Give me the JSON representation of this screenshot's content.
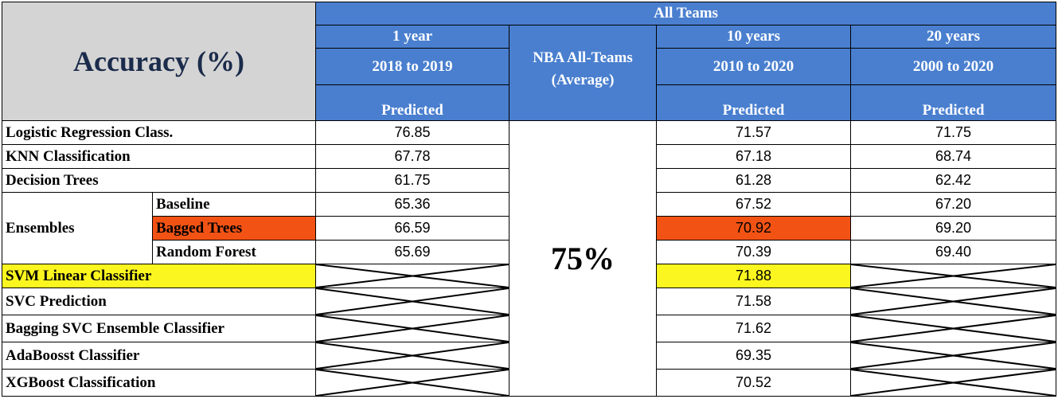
{
  "header": {
    "title": "Accuracy (%)",
    "all_teams": "All Teams",
    "col_1year": {
      "period": "1 year",
      "range": "2018 to 2019",
      "sub": "Predicted"
    },
    "col_nba": {
      "line1": "NBA All-Teams",
      "line2": "(Average)"
    },
    "col_10years": {
      "period": "10 years",
      "range": "2010 to 2020",
      "sub": "Predicted"
    },
    "col_20years": {
      "period": "20 years",
      "range": "2000 to 2020",
      "sub": "Predicted"
    }
  },
  "average": "75%",
  "ensembles_label": "Ensembles",
  "rows": [
    {
      "label": "Logistic Regression Class.",
      "y1": "76.85",
      "y10": "71.57",
      "y20": "71.75"
    },
    {
      "label": "KNN Classification",
      "y1": "67.78",
      "y10": "67.18",
      "y20": "68.74"
    },
    {
      "label": "Decision Trees",
      "y1": "61.75",
      "y10": "61.28",
      "y20": "62.42"
    },
    {
      "label": "Baseline",
      "y1": "65.36",
      "y10": "67.52",
      "y20": "67.20"
    },
    {
      "label": "Bagged Trees",
      "y1": "66.59",
      "y10": "70.92",
      "y20": "69.20"
    },
    {
      "label": "Random Forest",
      "y1": "65.69",
      "y10": "70.39",
      "y20": "69.40"
    },
    {
      "label": "SVM Linear Classifier",
      "y10": "71.88"
    },
    {
      "label": "SVC Prediction",
      "y10": "71.58"
    },
    {
      "label": "Bagging SVC Ensemble Classifier",
      "y10": "71.62"
    },
    {
      "label": "AdaBoosst Classifier",
      "y10": "69.35"
    },
    {
      "label": "XGBoost Classification",
      "y10": "70.52"
    }
  ],
  "colors": {
    "header_blue": "#4a7fcf",
    "title_gray": "#d4d4d4",
    "highlight_orange": "#f25314",
    "highlight_yellow": "#fbf61f"
  }
}
